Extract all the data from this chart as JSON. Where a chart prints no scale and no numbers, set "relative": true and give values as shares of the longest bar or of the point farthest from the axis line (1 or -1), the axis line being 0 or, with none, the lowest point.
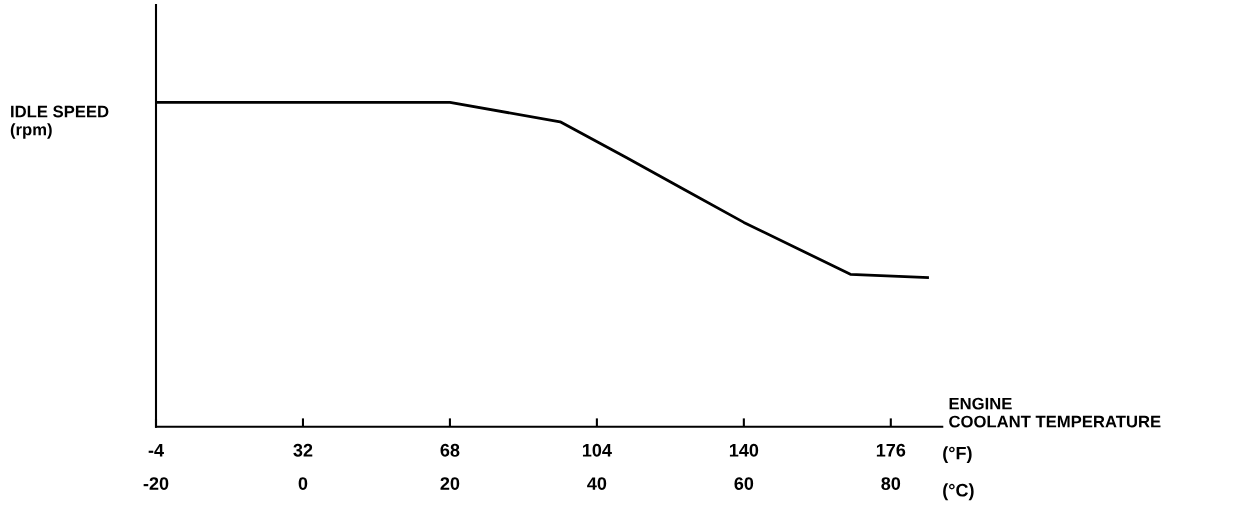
{
  "chart_data": {
    "type": "line",
    "relative": true,
    "ylabel": "IDLE SPEED\n(rpm)",
    "xlabel": "ENGINE\nCOOLANT TEMPERATURE",
    "x": [
      -20,
      20,
      35,
      44,
      52,
      60,
      74.5,
      85
    ],
    "series": [
      {
        "color": "#000000",
        "values": [
          1,
          1,
          0.94,
          0.83,
          0.73,
          0.63,
          0.47,
          0.46
        ]
      }
    ],
    "xlim": [
      -20,
      87
    ],
    "xticks": [
      -20,
      0,
      20,
      40,
      60,
      80
    ],
    "x2lim": [
      -4,
      188.6
    ],
    "x2ticks": [
      -4,
      32,
      68,
      104,
      140,
      176
    ],
    "annotations": [
      "(°F)",
      "(°C)"
    ],
    "grid": false,
    "legend": false,
    "marker": "none",
    "line_style": "solid"
  }
}
